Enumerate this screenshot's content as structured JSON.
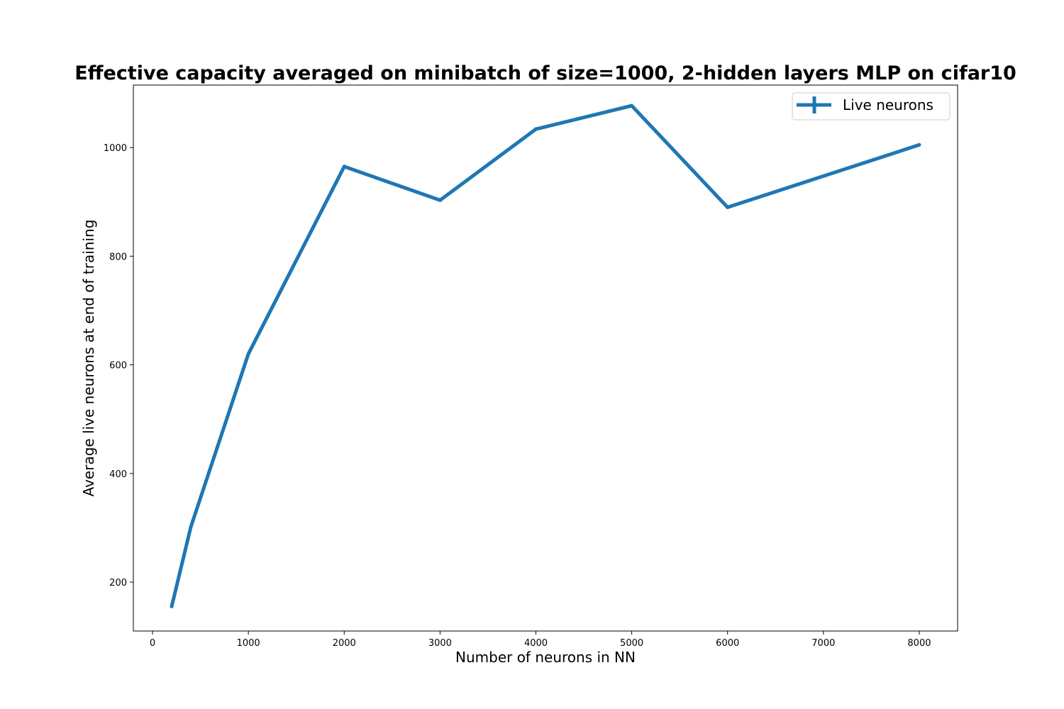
{
  "chart_data": {
    "type": "line",
    "title": "Effective capacity averaged on minibatch of size=1000, 2-hidden layers MLP on cifar10",
    "xlabel": "Number of neurons in NN",
    "ylabel": "Average live neurons at end of training",
    "xlim": [
      -200,
      8400
    ],
    "ylim": [
      110,
      1115
    ],
    "xticks": [
      0,
      1000,
      2000,
      3000,
      4000,
      5000,
      6000,
      7000,
      8000
    ],
    "yticks": [
      200,
      400,
      600,
      800,
      1000
    ],
    "grid": false,
    "legend_position": "top-right",
    "series": [
      {
        "name": "Live neurons",
        "color": "#1f77b4",
        "x": [
          200,
          400,
          1000,
          2000,
          3000,
          4000,
          5000,
          6000,
          8000
        ],
        "y": [
          155,
          302,
          620,
          965,
          903,
          1034,
          1077,
          890,
          1005
        ]
      }
    ]
  }
}
